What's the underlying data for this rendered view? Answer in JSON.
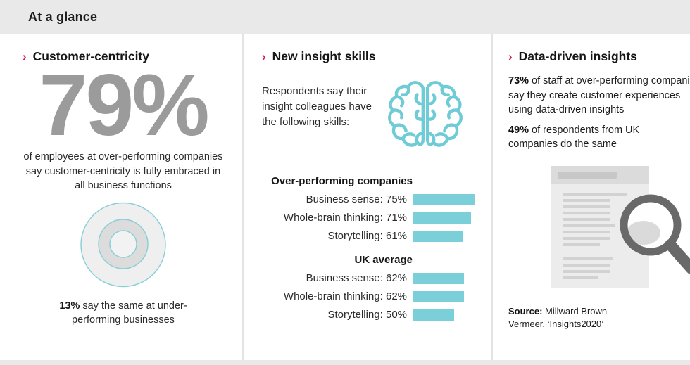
{
  "header": {
    "title": "At a glance"
  },
  "accent": {
    "red": "#d6244c",
    "teal": "#7bcfd8",
    "teal_stroke": "#6fcbd6",
    "stat_gray": "#9b9b9b"
  },
  "columns": {
    "customer_centricity": {
      "title": "Customer-centricity",
      "big_stat": "79%",
      "description": "of employees at over-performing companies say customer-centricity is fully embraced in all business functions",
      "sub_stat_bold": "13%",
      "sub_stat_rest": " say the same at under-performing businesses"
    },
    "insight_skills": {
      "title": "New insight skills",
      "intro": "Respondents say their insight colleagues have the following skills:"
    },
    "data_driven": {
      "title": "Data-driven insights",
      "p1_bold": "73%",
      "p1_rest": " of staff at over-performing companies say they create customer experiences using data-driven insights",
      "p2_bold": "49%",
      "p2_rest": " of respondents from UK companies do the same",
      "source_bold": "Source:",
      "source_rest": " Millward Brown Vermeer, ‘Insights2020’"
    }
  },
  "chart_data": [
    {
      "type": "bar",
      "orientation": "horizontal",
      "title": "Over-performing companies",
      "categories": [
        "Business sense",
        "Whole-brain thinking",
        "Storytelling"
      ],
      "values": [
        75,
        71,
        61
      ],
      "unit": "%",
      "xlim": [
        0,
        100
      ],
      "bar_color": "#7bcfd8",
      "value_labels": "inline-with-category"
    },
    {
      "type": "bar",
      "orientation": "horizontal",
      "title": "UK average",
      "categories": [
        "Business sense",
        "Whole-brain thinking",
        "Storytelling"
      ],
      "values": [
        62,
        62,
        50
      ],
      "unit": "%",
      "xlim": [
        0,
        100
      ],
      "bar_color": "#7bcfd8",
      "value_labels": "inline-with-category"
    }
  ]
}
